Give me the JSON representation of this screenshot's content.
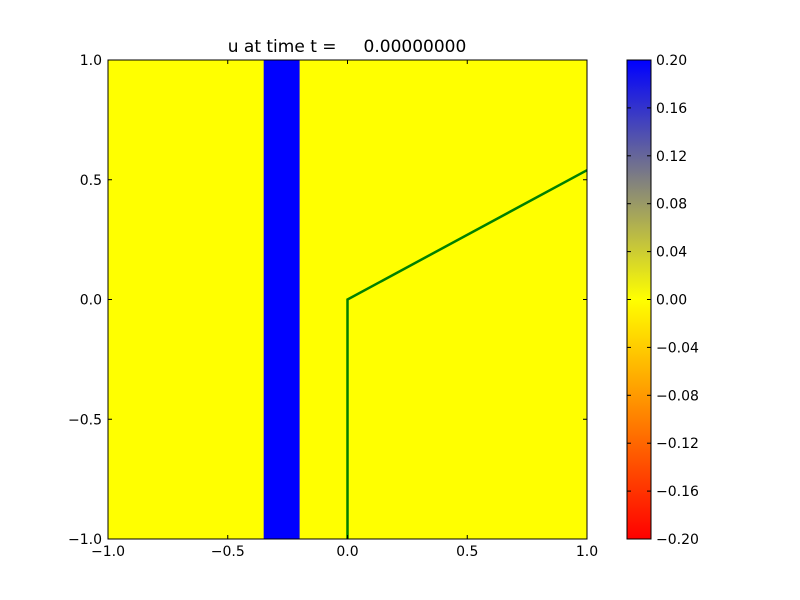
{
  "chart_data": {
    "type": "heatmap",
    "title": "u at time t =     0.00000000",
    "xlabel": "",
    "ylabel": "",
    "xlim": [
      -1.0,
      1.0
    ],
    "ylim": [
      -1.0,
      1.0
    ],
    "x_ticks": [
      "−1.0",
      "−0.5",
      "0.0",
      "0.5",
      "1.0"
    ],
    "x_tick_values": [
      -1.0,
      -0.5,
      0.0,
      0.5,
      1.0
    ],
    "y_ticks": [
      "−1.0",
      "−0.5",
      "0.0",
      "0.5",
      "1.0"
    ],
    "y_tick_values": [
      -1.0,
      -0.5,
      0.0,
      0.5,
      1.0
    ],
    "grid": false,
    "field": {
      "background_value": 0.0,
      "background_color": "#ffff00",
      "bands": [
        {
          "x_range": [
            -0.35,
            -0.2
          ],
          "y_range": [
            -1.0,
            1.0
          ],
          "value": 0.2,
          "color": "#0000ff"
        }
      ]
    },
    "overlay_line": {
      "color": "#008000",
      "points": [
        [
          0.0,
          -1.0
        ],
        [
          0.0,
          0.0
        ],
        [
          1.0,
          0.54
        ]
      ]
    },
    "colorbar": {
      "range": [
        -0.2,
        0.2
      ],
      "ticks": [
        "0.20",
        "0.16",
        "0.12",
        "0.08",
        "0.04",
        "0.00",
        "−0.04",
        "−0.08",
        "−0.12",
        "−0.16",
        "−0.20"
      ],
      "tick_values": [
        0.2,
        0.16,
        0.12,
        0.08,
        0.04,
        0.0,
        -0.04,
        -0.08,
        -0.12,
        -0.16,
        -0.2
      ],
      "gradient_stops": [
        {
          "value": -0.2,
          "color": "#ff0000"
        },
        {
          "value": -0.1,
          "color": "#ff8000"
        },
        {
          "value": 0.0,
          "color": "#ffff00"
        },
        {
          "value": 0.1,
          "color": "#808080"
        },
        {
          "value": 0.2,
          "color": "#0000ff"
        }
      ]
    }
  }
}
